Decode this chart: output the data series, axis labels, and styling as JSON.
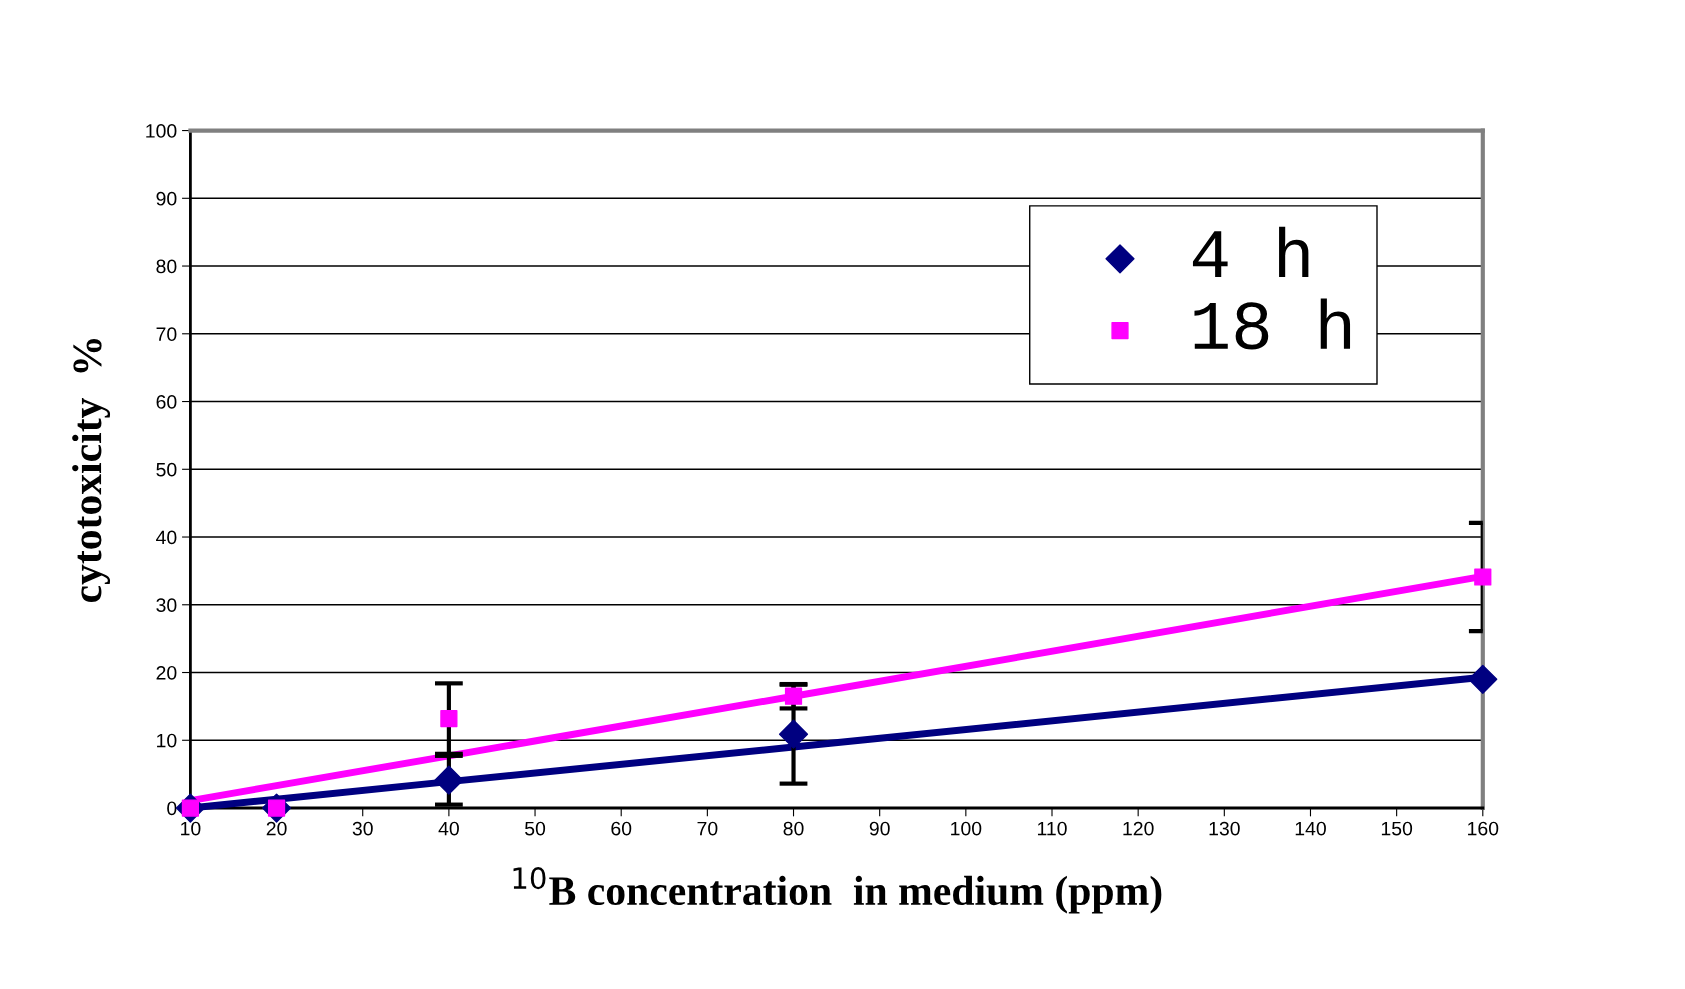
{
  "chart_data": {
    "type": "scatter",
    "xlabel": "$^{10}$B concentration  in medium (ppm)",
    "ylabel": "cytotoxicity  %",
    "x": [
      10,
      20,
      40,
      80,
      160
    ],
    "series": [
      {
        "name": "4 h",
        "color": "#000080",
        "marker": "diamond",
        "values": [
          0,
          0,
          4.1,
          10.9,
          19.0
        ],
        "errors": [
          null,
          null,
          3.6,
          7.3,
          null
        ]
      },
      {
        "name": "18 h",
        "color": "#ff00ff",
        "marker": "square",
        "values": [
          0,
          0,
          13.2,
          16.5,
          34.1
        ],
        "errors": [
          null,
          null,
          5.2,
          1.8,
          8.0
        ]
      },
      {
        "type": "line",
        "color": "#000080",
        "values": [
          0,
          1.3,
          3.9,
          9.0,
          19.3
        ]
      },
      {
        "type": "line",
        "color": "#ff00ff",
        "values": [
          1.1,
          3.3,
          7.7,
          16.5,
          34.2
        ]
      }
    ],
    "xlim": [
      10,
      160
    ],
    "xticks": [
      10,
      20,
      30,
      40,
      50,
      60,
      70,
      80,
      90,
      100,
      110,
      120,
      130,
      140,
      150,
      160
    ],
    "ylim": [
      0,
      100
    ],
    "yticks": [
      0,
      10,
      20,
      30,
      40,
      50,
      60,
      70,
      80,
      90,
      100
    ],
    "grid": "y",
    "legend": "top right"
  }
}
